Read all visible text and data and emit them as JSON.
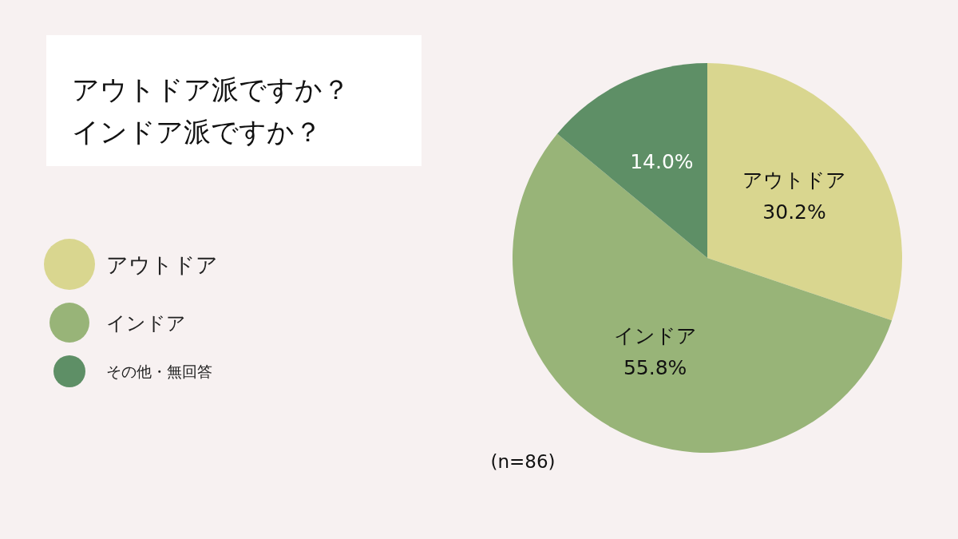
{
  "chart_data": {
    "type": "pie",
    "title": "アウトドア派ですか？",
    "subtitle": "インドア派ですか？",
    "categories": [
      "アウトドア",
      "インドア",
      "その他・無回答"
    ],
    "values": [
      30.2,
      55.8,
      14.0
    ],
    "colors": [
      "#d9d68f",
      "#98b478",
      "#5e8f66"
    ],
    "value_labels": [
      "アウトドア\n30.2%",
      "インドア\n55.8%",
      "14.0%"
    ],
    "legend": "left",
    "annotations": [
      "(n=86)"
    ]
  }
}
